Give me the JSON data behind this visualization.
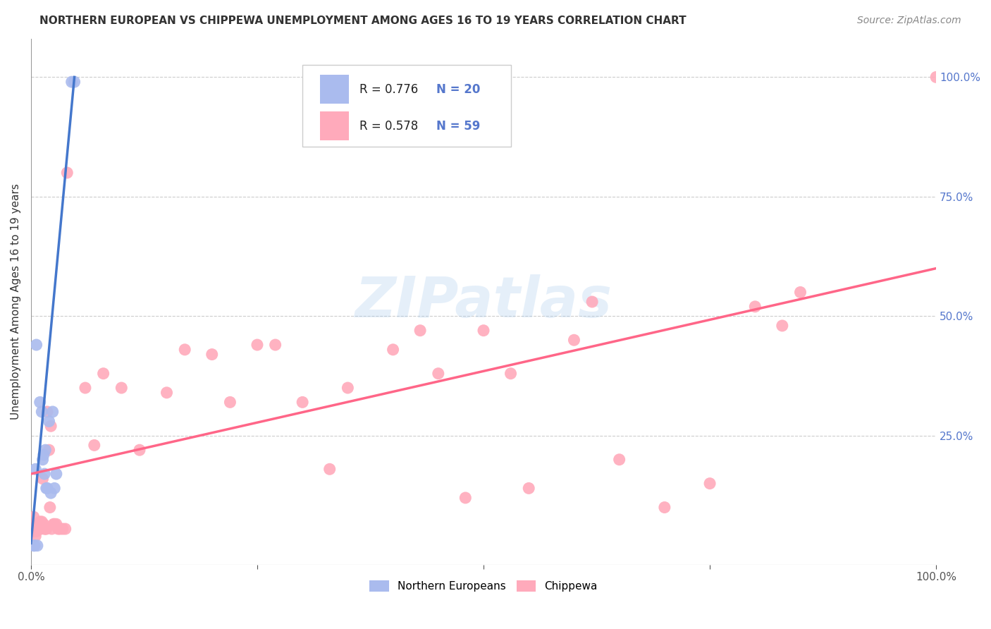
{
  "title": "NORTHERN EUROPEAN VS CHIPPEWA UNEMPLOYMENT AMONG AGES 16 TO 19 YEARS CORRELATION CHART",
  "source": "Source: ZipAtlas.com",
  "ylabel": "Unemployment Among Ages 16 to 19 years",
  "xlim": [
    0,
    1.0
  ],
  "ylim": [
    -0.02,
    1.08
  ],
  "xticks": [
    0.0,
    0.25,
    0.5,
    0.75,
    1.0
  ],
  "xticklabels": [
    "0.0%",
    "",
    "",
    "",
    "100.0%"
  ],
  "yticks": [
    0.0,
    0.25,
    0.5,
    0.75,
    1.0
  ],
  "yticklabels": [
    "",
    "25.0%",
    "50.0%",
    "75.0%",
    "100.0%"
  ],
  "background_color": "#ffffff",
  "grid_color": "#cccccc",
  "watermark": "ZIPatlas",
  "legend_R_blue": "R = 0.776",
  "legend_N_blue": "N = 20",
  "legend_R_pink": "R = 0.578",
  "legend_N_pink": "N = 59",
  "blue_color": "#aabbee",
  "pink_color": "#ffaabb",
  "blue_line_color": "#4477cc",
  "pink_line_color": "#ff6688",
  "tick_color": "#5577cc",
  "blue_scatter": [
    [
      0.003,
      0.02
    ],
    [
      0.004,
      0.02
    ],
    [
      0.005,
      0.18
    ],
    [
      0.006,
      0.44
    ],
    [
      0.007,
      0.02
    ],
    [
      0.01,
      0.32
    ],
    [
      0.012,
      0.3
    ],
    [
      0.013,
      0.2
    ],
    [
      0.014,
      0.21
    ],
    [
      0.015,
      0.17
    ],
    [
      0.016,
      0.22
    ],
    [
      0.017,
      0.14
    ],
    [
      0.018,
      0.14
    ],
    [
      0.02,
      0.28
    ],
    [
      0.022,
      0.13
    ],
    [
      0.024,
      0.3
    ],
    [
      0.026,
      0.14
    ],
    [
      0.028,
      0.17
    ],
    [
      0.045,
      0.99
    ],
    [
      0.048,
      0.99
    ]
  ],
  "pink_scatter": [
    [
      0.002,
      0.06
    ],
    [
      0.003,
      0.08
    ],
    [
      0.004,
      0.05
    ],
    [
      0.005,
      0.04
    ],
    [
      0.006,
      0.05
    ],
    [
      0.007,
      0.06
    ],
    [
      0.008,
      0.055
    ],
    [
      0.009,
      0.055
    ],
    [
      0.01,
      0.07
    ],
    [
      0.011,
      0.055
    ],
    [
      0.012,
      0.07
    ],
    [
      0.013,
      0.16
    ],
    [
      0.014,
      0.065
    ],
    [
      0.015,
      0.055
    ],
    [
      0.016,
      0.055
    ],
    [
      0.017,
      0.055
    ],
    [
      0.018,
      0.3
    ],
    [
      0.02,
      0.22
    ],
    [
      0.021,
      0.1
    ],
    [
      0.022,
      0.27
    ],
    [
      0.023,
      0.055
    ],
    [
      0.025,
      0.065
    ],
    [
      0.026,
      0.065
    ],
    [
      0.028,
      0.065
    ],
    [
      0.03,
      0.055
    ],
    [
      0.032,
      0.055
    ],
    [
      0.035,
      0.055
    ],
    [
      0.038,
      0.055
    ],
    [
      0.04,
      0.8
    ],
    [
      0.06,
      0.35
    ],
    [
      0.07,
      0.23
    ],
    [
      0.08,
      0.38
    ],
    [
      0.1,
      0.35
    ],
    [
      0.12,
      0.22
    ],
    [
      0.15,
      0.34
    ],
    [
      0.17,
      0.43
    ],
    [
      0.2,
      0.42
    ],
    [
      0.22,
      0.32
    ],
    [
      0.25,
      0.44
    ],
    [
      0.27,
      0.44
    ],
    [
      0.3,
      0.32
    ],
    [
      0.33,
      0.18
    ],
    [
      0.35,
      0.35
    ],
    [
      0.4,
      0.43
    ],
    [
      0.43,
      0.47
    ],
    [
      0.45,
      0.38
    ],
    [
      0.48,
      0.12
    ],
    [
      0.5,
      0.47
    ],
    [
      0.53,
      0.38
    ],
    [
      0.55,
      0.14
    ],
    [
      0.6,
      0.45
    ],
    [
      0.62,
      0.53
    ],
    [
      0.65,
      0.2
    ],
    [
      0.7,
      0.1
    ],
    [
      0.75,
      0.15
    ],
    [
      0.8,
      0.52
    ],
    [
      0.83,
      0.48
    ],
    [
      0.85,
      0.55
    ],
    [
      1.0,
      1.0
    ]
  ],
  "blue_line_pts": [
    [
      0.0,
      0.025
    ],
    [
      0.048,
      1.0
    ]
  ],
  "pink_line_pts": [
    [
      0.0,
      0.17
    ],
    [
      1.0,
      0.6
    ]
  ]
}
